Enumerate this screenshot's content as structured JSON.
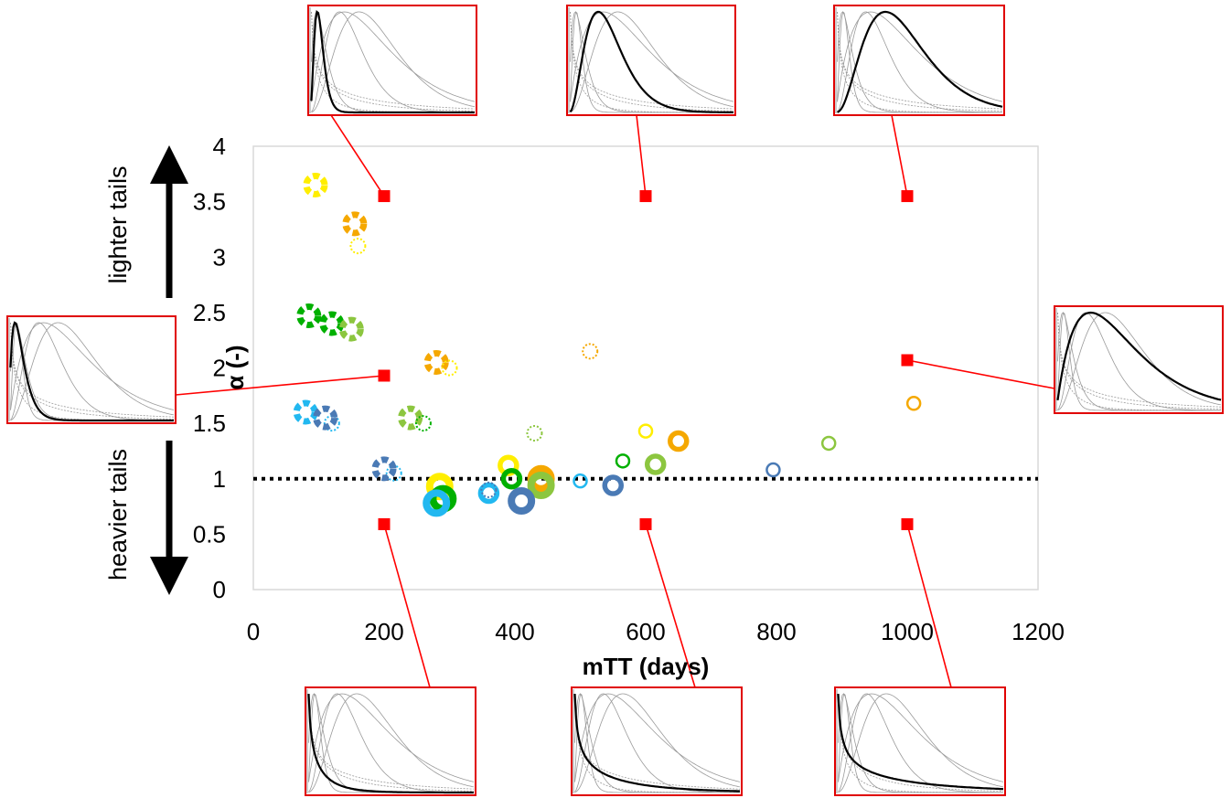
{
  "chart_data": {
    "type": "scatter",
    "xlabel": "mTT (days)",
    "ylabel": "α (-)",
    "xlim": [
      0,
      1200
    ],
    "ylim": [
      0,
      4
    ],
    "x_ticks": [
      "0",
      "200",
      "400",
      "600",
      "800",
      "1000",
      "1200"
    ],
    "y_ticks": [
      "0",
      "0.5",
      "1",
      "1.5",
      "2",
      "2.5",
      "3",
      "3.5",
      "4"
    ],
    "reference_line": {
      "y": 1,
      "style": "dotted"
    },
    "side_labels": {
      "upper": "lighter tails",
      "lower": "heavier tails"
    },
    "grid": false,
    "colors": {
      "yellow": "#ffee00",
      "orange": "#f5a800",
      "green": "#00b000",
      "lightgreen": "#8cc63f",
      "cyan": "#22b8f0",
      "steel": "#4a7ab5",
      "marker": "#ff0000",
      "inset_frame": "#e00000"
    },
    "example_points": [
      {
        "x": 200,
        "y": 3.55
      },
      {
        "x": 600,
        "y": 3.55
      },
      {
        "x": 1000,
        "y": 3.55
      },
      {
        "x": 200,
        "y": 1.93
      },
      {
        "x": 1000,
        "y": 2.07
      },
      {
        "x": 200,
        "y": 0.59
      },
      {
        "x": 600,
        "y": 0.59
      },
      {
        "x": 1000,
        "y": 0.59
      }
    ],
    "series": [
      {
        "values": [
          {
            "x": 95,
            "y": 3.65,
            "color": "yellow",
            "style": "dashed-thick"
          },
          {
            "x": 160,
            "y": 3.1,
            "color": "yellow",
            "style": "dotted"
          },
          {
            "x": 390,
            "y": 1.12,
            "color": "yellow",
            "style": "ring-medium"
          },
          {
            "x": 600,
            "y": 1.43,
            "color": "yellow",
            "style": "ring-thin"
          },
          {
            "x": 285,
            "y": 0.93,
            "color": "yellow",
            "style": "ring-thick"
          }
        ]
      },
      {
        "values": [
          {
            "x": 155,
            "y": 3.3,
            "color": "orange",
            "style": "dashed-thick"
          },
          {
            "x": 280,
            "y": 2.05,
            "color": "orange",
            "style": "dashed-thick"
          },
          {
            "x": 300,
            "y": 2.0,
            "color": "yellow",
            "style": "dotted"
          },
          {
            "x": 515,
            "y": 2.15,
            "color": "orange",
            "style": "dotted"
          },
          {
            "x": 440,
            "y": 1.0,
            "color": "orange",
            "style": "ring-thick"
          },
          {
            "x": 650,
            "y": 1.34,
            "color": "orange",
            "style": "ring-medium"
          },
          {
            "x": 1010,
            "y": 1.68,
            "color": "orange",
            "style": "ring-thin"
          }
        ]
      },
      {
        "values": [
          {
            "x": 85,
            "y": 2.47,
            "color": "green",
            "style": "dashed-thick"
          },
          {
            "x": 120,
            "y": 2.4,
            "color": "green",
            "style": "dashed-thick"
          },
          {
            "x": 395,
            "y": 1.0,
            "color": "green",
            "style": "ring-medium"
          },
          {
            "x": 565,
            "y": 1.16,
            "color": "green",
            "style": "ring-thin"
          },
          {
            "x": 290,
            "y": 0.82,
            "color": "green",
            "style": "ring-thick"
          }
        ]
      },
      {
        "values": [
          {
            "x": 150,
            "y": 2.35,
            "color": "lightgreen",
            "style": "dashed-thick"
          },
          {
            "x": 240,
            "y": 1.55,
            "color": "lightgreen",
            "style": "dashed-thick"
          },
          {
            "x": 260,
            "y": 1.5,
            "color": "green",
            "style": "dotted"
          },
          {
            "x": 430,
            "y": 1.41,
            "color": "lightgreen",
            "style": "dotted"
          },
          {
            "x": 440,
            "y": 0.94,
            "color": "lightgreen",
            "style": "ring-thick"
          },
          {
            "x": 615,
            "y": 1.13,
            "color": "lightgreen",
            "style": "ring-medium"
          },
          {
            "x": 880,
            "y": 1.32,
            "color": "lightgreen",
            "style": "ring-thin"
          }
        ]
      },
      {
        "values": [
          {
            "x": 80,
            "y": 1.6,
            "color": "cyan",
            "style": "dashed-thick"
          },
          {
            "x": 120,
            "y": 1.5,
            "color": "cyan",
            "style": "dotted"
          },
          {
            "x": 215,
            "y": 1.05,
            "color": "cyan",
            "style": "dotted"
          },
          {
            "x": 360,
            "y": 0.87,
            "color": "cyan",
            "style": "ring-medium"
          },
          {
            "x": 500,
            "y": 0.98,
            "color": "cyan",
            "style": "ring-thin"
          },
          {
            "x": 280,
            "y": 0.78,
            "color": "cyan",
            "style": "ring-thick"
          }
        ]
      },
      {
        "values": [
          {
            "x": 110,
            "y": 1.55,
            "color": "steel",
            "style": "dashed-thick"
          },
          {
            "x": 200,
            "y": 1.09,
            "color": "steel",
            "style": "dashed-thick"
          },
          {
            "x": 360,
            "y": 0.9,
            "color": "steel",
            "style": "dotted"
          },
          {
            "x": 410,
            "y": 0.8,
            "color": "steel",
            "style": "ring-thick"
          },
          {
            "x": 550,
            "y": 0.94,
            "color": "steel",
            "style": "ring-medium"
          },
          {
            "x": 795,
            "y": 1.08,
            "color": "steel",
            "style": "ring-thin"
          }
        ]
      }
    ],
    "insets": [
      {
        "name": "inset-top-left",
        "anchor": 0,
        "shape": {
          "mean": 150,
          "alpha": 3.5
        }
      },
      {
        "name": "inset-top-middle",
        "anchor": 1,
        "shape": {
          "mean": 600,
          "alpha": 3.5
        }
      },
      {
        "name": "inset-top-right",
        "anchor": 2,
        "shape": {
          "mean": 1000,
          "alpha": 3.5
        }
      },
      {
        "name": "inset-left",
        "anchor": 3,
        "shape": {
          "mean": 180,
          "alpha": 1.9
        }
      },
      {
        "name": "inset-right",
        "anchor": 4,
        "shape": {
          "mean": 1000,
          "alpha": 2.0
        }
      },
      {
        "name": "inset-bottom-left",
        "anchor": 5,
        "shape": {
          "mean": 200,
          "alpha": 0.6
        }
      },
      {
        "name": "inset-bottom-middle",
        "anchor": 6,
        "shape": {
          "mean": 600,
          "alpha": 0.6
        }
      },
      {
        "name": "inset-bottom-right",
        "anchor": 7,
        "shape": {
          "mean": 1000,
          "alpha": 0.6
        }
      }
    ]
  }
}
